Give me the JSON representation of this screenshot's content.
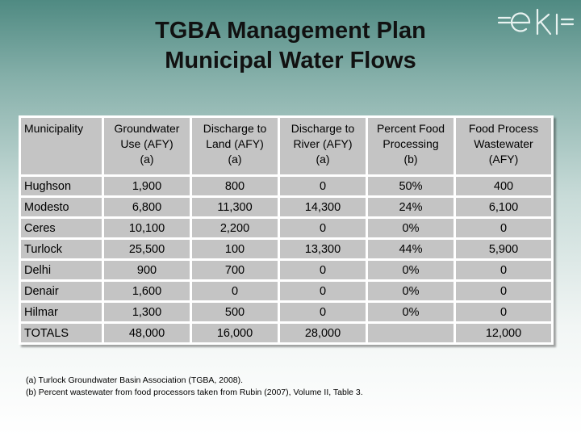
{
  "title": {
    "line1": "TGBA Management Plan",
    "line2": "Municipal Water Flows"
  },
  "logo": {
    "text": "eki",
    "color": "#e8f2f0"
  },
  "table": {
    "headers": [
      [
        "Municipality",
        "",
        ""
      ],
      [
        "Groundwater",
        "Use (AFY)",
        "(a)"
      ],
      [
        "Discharge to",
        "Land (AFY)",
        "(a)"
      ],
      [
        "Discharge to",
        "River (AFY)",
        "(a)"
      ],
      [
        "Percent Food",
        "Processing",
        "(b)"
      ],
      [
        "Food Process",
        "Wastewater",
        "(AFY)"
      ]
    ],
    "rows": [
      [
        "Hughson",
        "1,900",
        "800",
        "0",
        "50%",
        "400"
      ],
      [
        "Modesto",
        "6,800",
        "11,300",
        "14,300",
        "24%",
        "6,100"
      ],
      [
        "Ceres",
        "10,100",
        "2,200",
        "0",
        "0%",
        "0"
      ],
      [
        "Turlock",
        "25,500",
        "100",
        "13,300",
        "44%",
        "5,900"
      ],
      [
        "Delhi",
        "900",
        "700",
        "0",
        "0%",
        "0"
      ],
      [
        "Denair",
        "1,600",
        "0",
        "0",
        "0%",
        "0"
      ],
      [
        "Hilmar",
        "1,300",
        "500",
        "0",
        "0%",
        "0"
      ],
      [
        "TOTALS",
        "48,000",
        "16,000",
        "28,000",
        "",
        "12,000"
      ]
    ],
    "cell_color": "#c4c4c4"
  },
  "footnotes": {
    "a": "(a) Turlock Groundwater Basin Association (TGBA, 2008).",
    "b": "(b) Percent wastewater from food processors taken from Rubin (2007), Volume II, Table 3."
  }
}
